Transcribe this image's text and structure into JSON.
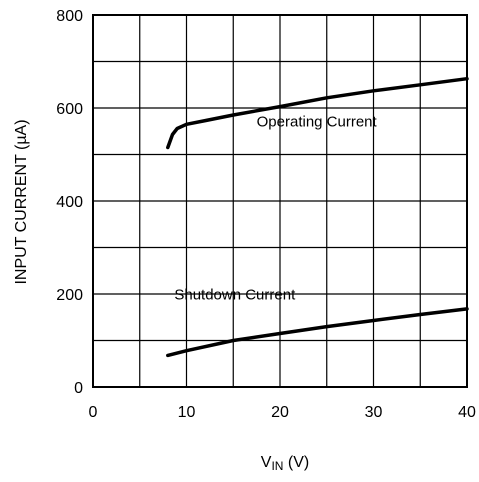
{
  "chart_data": {
    "type": "line",
    "xlim": [
      0,
      40
    ],
    "ylim": [
      0,
      800
    ],
    "x_ticks": [
      "0",
      "10",
      "20",
      "30",
      "40"
    ],
    "y_ticks": [
      "0",
      "200",
      "400",
      "600",
      "800"
    ],
    "xlabel_main": "V",
    "xlabel_sub": "IN",
    "xlabel_unit": " (V)",
    "ylabel": "INPUT CURRENT (µA)",
    "grid": true,
    "series": [
      {
        "name": "Operating Current",
        "x": [
          8,
          8.5,
          9,
          10,
          12,
          15,
          20,
          25,
          30,
          35,
          40
        ],
        "y": [
          515,
          543,
          556,
          565,
          573,
          585,
          603,
          622,
          637,
          650,
          663
        ]
      },
      {
        "name": "Shutdown Current",
        "x": [
          8,
          10,
          15,
          20,
          25,
          30,
          35,
          40
        ],
        "y": [
          68,
          78,
          100,
          115,
          130,
          143,
          156,
          168
        ]
      }
    ]
  }
}
